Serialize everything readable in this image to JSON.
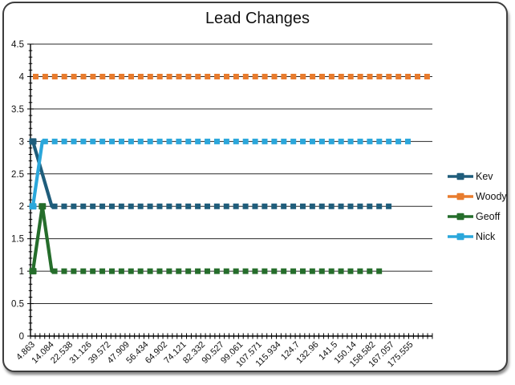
{
  "window": {
    "kind": "chart-window"
  },
  "chart_data": {
    "type": "line",
    "title": "Lead Changes",
    "xlabel": "",
    "ylabel": "",
    "ylim": [
      0,
      4.5
    ],
    "y_major_step": 0.5,
    "y_minor_step": 0.1,
    "y_tick_labels": [
      "4.5",
      "4",
      "3.5",
      "3",
      "2.5",
      "2",
      "1.5",
      "1",
      "0.5",
      "0"
    ],
    "grid": true,
    "legend_position": "right",
    "n_categories": 85,
    "x_label_every_n_categories": 4,
    "x_tick_labels": [
      "4.863",
      "14.084",
      "22.538",
      "31.126",
      "39.572",
      "47.909",
      "56.434",
      "64.902",
      "74.121",
      "82.332",
      "90.527",
      "99.061",
      "107.571",
      "115.934",
      "124.7",
      "132.96",
      "141.5",
      "150.14",
      "158.582",
      "167.057",
      "175.555"
    ],
    "series": [
      {
        "name": "Kev",
        "color": "#1F5D7B",
        "points": [
          [
            0,
            3
          ],
          [
            4,
            2
          ],
          [
            76,
            2
          ]
        ],
        "marker_vertices": [
          [
            0,
            3
          ]
        ]
      },
      {
        "name": "Woody",
        "color": "#E87C2E",
        "points": [
          [
            0,
            4
          ],
          [
            84,
            4
          ]
        ],
        "marker_vertices": []
      },
      {
        "name": "Geoff",
        "color": "#256D2B",
        "points": [
          [
            0,
            1
          ],
          [
            2,
            2
          ],
          [
            4,
            1
          ],
          [
            74,
            1
          ]
        ],
        "marker_vertices": [
          [
            0,
            1
          ],
          [
            2,
            2
          ]
        ]
      },
      {
        "name": "Nick",
        "color": "#2BA7DB",
        "points": [
          [
            0,
            2
          ],
          [
            2,
            3
          ],
          [
            80,
            3
          ]
        ],
        "marker_vertices": [
          [
            0,
            2
          ]
        ]
      }
    ],
    "line_style": "thick-square-dash",
    "axis_color": "#000000",
    "gridline_color": "#2a2a2a",
    "text_color": "#111111"
  }
}
